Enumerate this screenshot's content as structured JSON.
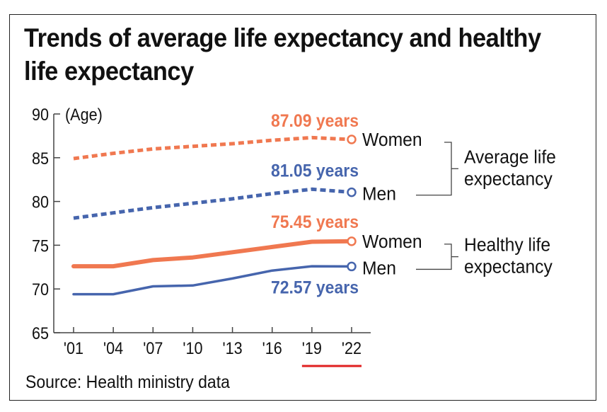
{
  "title": "Trends of average life expectancy and healthy life expectancy",
  "source": "Source: Health ministry data",
  "colors": {
    "women": "#f07850",
    "men": "#4665ad",
    "axis": "#444444",
    "highlight": "#e02020"
  },
  "chart_data": {
    "type": "line",
    "title": "Trends of average life expectancy and healthy life expectancy",
    "xlabel": "",
    "ylabel": "(Age)",
    "ylim": [
      65,
      90
    ],
    "yticks": [
      65,
      70,
      75,
      80,
      85,
      90
    ],
    "categories": [
      "'01",
      "'04",
      "'07",
      "'10",
      "'13",
      "'16",
      "'19",
      "'22"
    ],
    "highlighted_range": [
      "'19",
      "'22"
    ],
    "grid": false,
    "series": [
      {
        "name": "Average life expectancy - Women",
        "group": "Average life expectancy",
        "sex": "Women",
        "style": "dashed",
        "color": "#f07850",
        "values": [
          84.9,
          85.5,
          86.0,
          86.3,
          86.6,
          87.0,
          87.3,
          87.09
        ],
        "end_label": "87.09 years"
      },
      {
        "name": "Average life expectancy - Men",
        "group": "Average life expectancy",
        "sex": "Men",
        "style": "dashed",
        "color": "#4665ad",
        "values": [
          78.1,
          78.7,
          79.3,
          79.8,
          80.3,
          80.9,
          81.4,
          81.05
        ],
        "end_label": "81.05 years"
      },
      {
        "name": "Healthy life expectancy - Women",
        "group": "Healthy life expectancy",
        "sex": "Women",
        "style": "solid-thick",
        "color": "#f07850",
        "values": [
          72.6,
          72.6,
          73.3,
          73.6,
          74.2,
          74.8,
          75.4,
          75.45
        ],
        "end_label": "75.45 years"
      },
      {
        "name": "Healthy life expectancy - Men",
        "group": "Healthy life expectancy",
        "sex": "Men",
        "style": "solid",
        "color": "#4665ad",
        "values": [
          69.4,
          69.4,
          70.3,
          70.4,
          71.2,
          72.1,
          72.6,
          72.57
        ],
        "end_label": "72.57 years"
      }
    ],
    "legend": {
      "placement": "right",
      "groups": [
        {
          "label_line1": "Average life",
          "label_line2": "expectancy",
          "items": [
            "Women",
            "Men"
          ]
        },
        {
          "label_line1": "Healthy life",
          "label_line2": "expectancy",
          "items": [
            "Women",
            "Men"
          ]
        }
      ]
    }
  }
}
